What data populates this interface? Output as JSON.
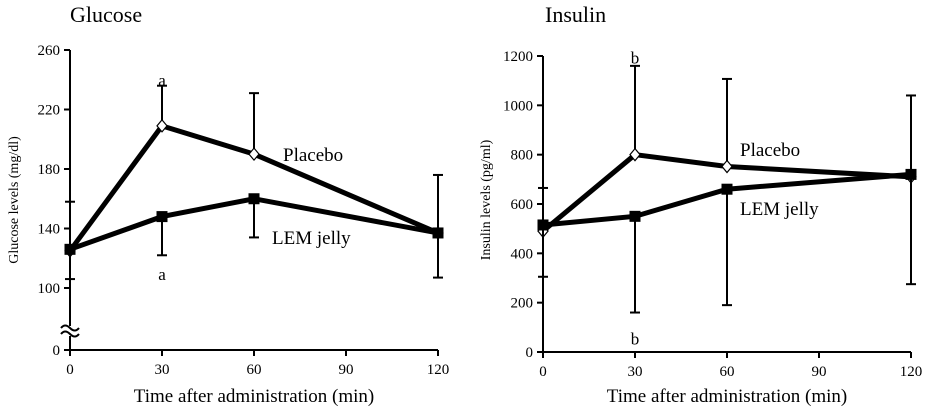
{
  "chart_data": [
    {
      "type": "line",
      "title": "Glucose",
      "xlabel": "Time after administration (min)",
      "ylabel": "Glucose levels (mg/dl)",
      "x": [
        0,
        30,
        60,
        90,
        120
      ],
      "xlim": [
        0,
        120
      ],
      "xticks": [
        "0",
        "30",
        "60",
        "90",
        "120"
      ],
      "ylim": [
        90,
        260
      ],
      "yticks": [
        "100",
        "140",
        "180",
        "220",
        "260"
      ],
      "axis_break": {
        "zero_label": "0",
        "broken_between": [
          0,
          100
        ]
      },
      "series": [
        {
          "name": "Placebo",
          "marker": "diamond",
          "x": [
            0,
            30,
            60,
            120
          ],
          "y": [
            125,
            209,
            190,
            137
          ],
          "error": [
            33,
            27,
            41,
            39
          ],
          "error_direction": "upper"
        },
        {
          "name": "LEM jelly",
          "marker": "square",
          "x": [
            0,
            30,
            60,
            120
          ],
          "y": [
            126,
            148,
            160,
            137
          ],
          "error": [
            20,
            26,
            26,
            30
          ],
          "error_direction": "lower"
        }
      ],
      "annotations": [
        {
          "text": "a",
          "x": 30,
          "y": 233,
          "series": "Placebo"
        },
        {
          "text": "a",
          "x": 30,
          "y": 116,
          "series": "LEM jelly"
        }
      ]
    },
    {
      "type": "line",
      "title": "Insulin",
      "xlabel": "Time after administration (min)",
      "ylabel": "Insulin levels (pg/ml)",
      "x": [
        0,
        30,
        60,
        90,
        120
      ],
      "xlim": [
        0,
        120
      ],
      "xticks": [
        "0",
        "30",
        "60",
        "90",
        "120"
      ],
      "ylim": [
        0,
        1200
      ],
      "yticks": [
        "0",
        "200",
        "400",
        "600",
        "800",
        "1000",
        "1200"
      ],
      "series": [
        {
          "name": "Placebo",
          "marker": "diamond",
          "x": [
            0,
            30,
            60,
            120
          ],
          "y": [
            490,
            800,
            752,
            710
          ],
          "error": [
            175,
            360,
            355,
            330
          ],
          "error_direction": "upper"
        },
        {
          "name": "LEM jelly",
          "marker": "square",
          "x": [
            0,
            30,
            60,
            120
          ],
          "y": [
            515,
            550,
            660,
            720
          ],
          "error": [
            210,
            390,
            470,
            445
          ],
          "error_direction": "lower"
        }
      ],
      "annotations": [
        {
          "text": "b",
          "x": 30,
          "y": 1185,
          "series": "Placebo"
        },
        {
          "text": "b",
          "x": 30,
          "y": 95,
          "series": "LEM jelly"
        }
      ]
    }
  ]
}
